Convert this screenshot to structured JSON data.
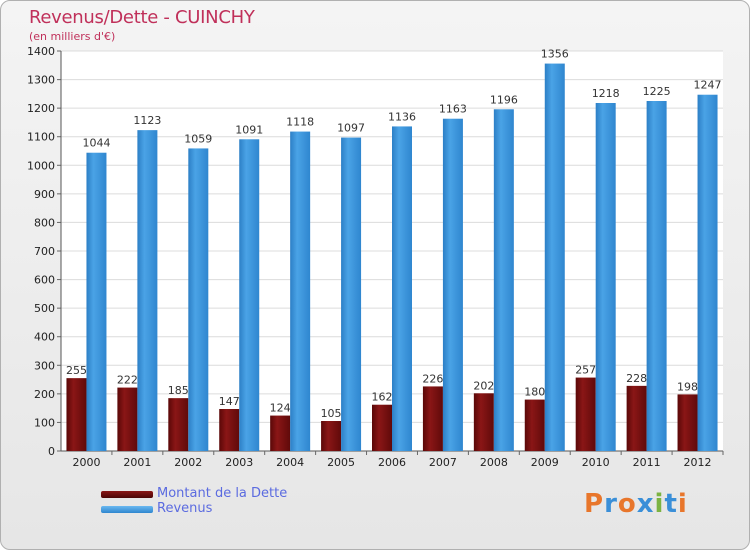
{
  "chart_data": {
    "type": "bar",
    "title": "Revenus/Dette - CUINCHY",
    "subtitle": "(en milliers d'€)",
    "categories": [
      "2000",
      "2001",
      "2002",
      "2003",
      "2004",
      "2005",
      "2006",
      "2007",
      "2008",
      "2009",
      "2010",
      "2011",
      "2012"
    ],
    "series": [
      {
        "name": "Montant de la Dette",
        "values": [
          255,
          222,
          185,
          147,
          124,
          105,
          162,
          226,
          202,
          180,
          257,
          228,
          198
        ],
        "color": "#7a0e0e"
      },
      {
        "name": "Revenus",
        "values": [
          1044,
          1123,
          1059,
          1091,
          1118,
          1097,
          1136,
          1163,
          1196,
          1356,
          1218,
          1225,
          1247
        ],
        "color": "#3f97dc"
      }
    ],
    "ylim": [
      0,
      1400
    ],
    "yticks": [
      0,
      100,
      200,
      300,
      400,
      500,
      600,
      700,
      800,
      900,
      1000,
      1100,
      1200,
      1300,
      1400
    ],
    "grid": true,
    "legend_position": "bottom-left"
  },
  "logo": {
    "text": "Proxiti",
    "colors": [
      "#e8762b",
      "#3a8fd8",
      "#e8762b",
      "#3a8fd8",
      "#7cb342",
      "#3a8fd8",
      "#e8762b"
    ]
  }
}
